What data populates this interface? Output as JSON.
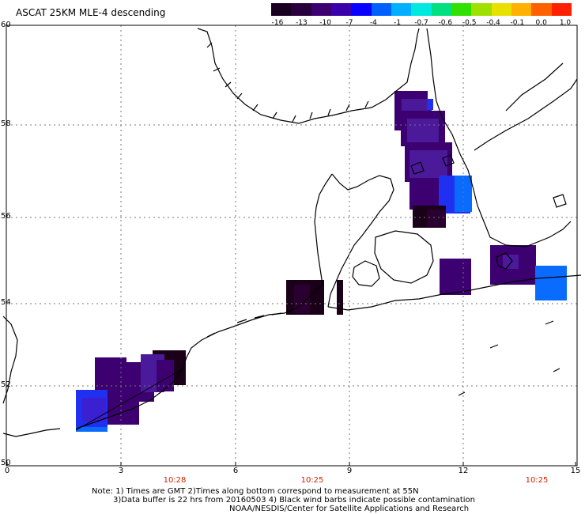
{
  "title": "ASCAT 25KM MLE-4 descending",
  "colorbar": {
    "labels": [
      "-16",
      "-13",
      "-10",
      "-7",
      "-4",
      "-1",
      "-0.7",
      "-0.6",
      "-0.5",
      "-0.4",
      "-0.1",
      "0.0",
      "1.0"
    ],
    "colors": [
      "#1a0020",
      "#2a003c",
      "#3d0070",
      "#3a00aa",
      "#0a00ff",
      "#0060ff",
      "#00b0ff",
      "#00e8e0",
      "#00e080",
      "#30e000",
      "#a0e000",
      "#e8e000",
      "#ffb000",
      "#ff6000",
      "#ff2000"
    ]
  },
  "axes": {
    "lat_labels": [
      "60",
      "58",
      "56",
      "54",
      "52",
      "50"
    ],
    "lon_labels": [
      "0",
      "3",
      "6",
      "9",
      "12",
      "15"
    ],
    "time_labels": [
      "10:28",
      "10:25",
      "10:25"
    ]
  },
  "notes": [
    "Note: 1) Times are GMT 2)Times along bottom correspond to measurement at 55N",
    "3)Data buffer is 22 hrs from 20160503 4) Black wind barbs indicate possible contamination",
    "NOAA/NESDIS/Center for Satellite Applications and Research"
  ],
  "cell_colors": {
    "dark": "#2a0030",
    "darker": "#1a0018",
    "purple": "#3d0070",
    "violet": "#4a1a9a",
    "blue_violet": "#3a20d0",
    "blue": "#2030f0",
    "light_blue": "#0a6cff"
  }
}
